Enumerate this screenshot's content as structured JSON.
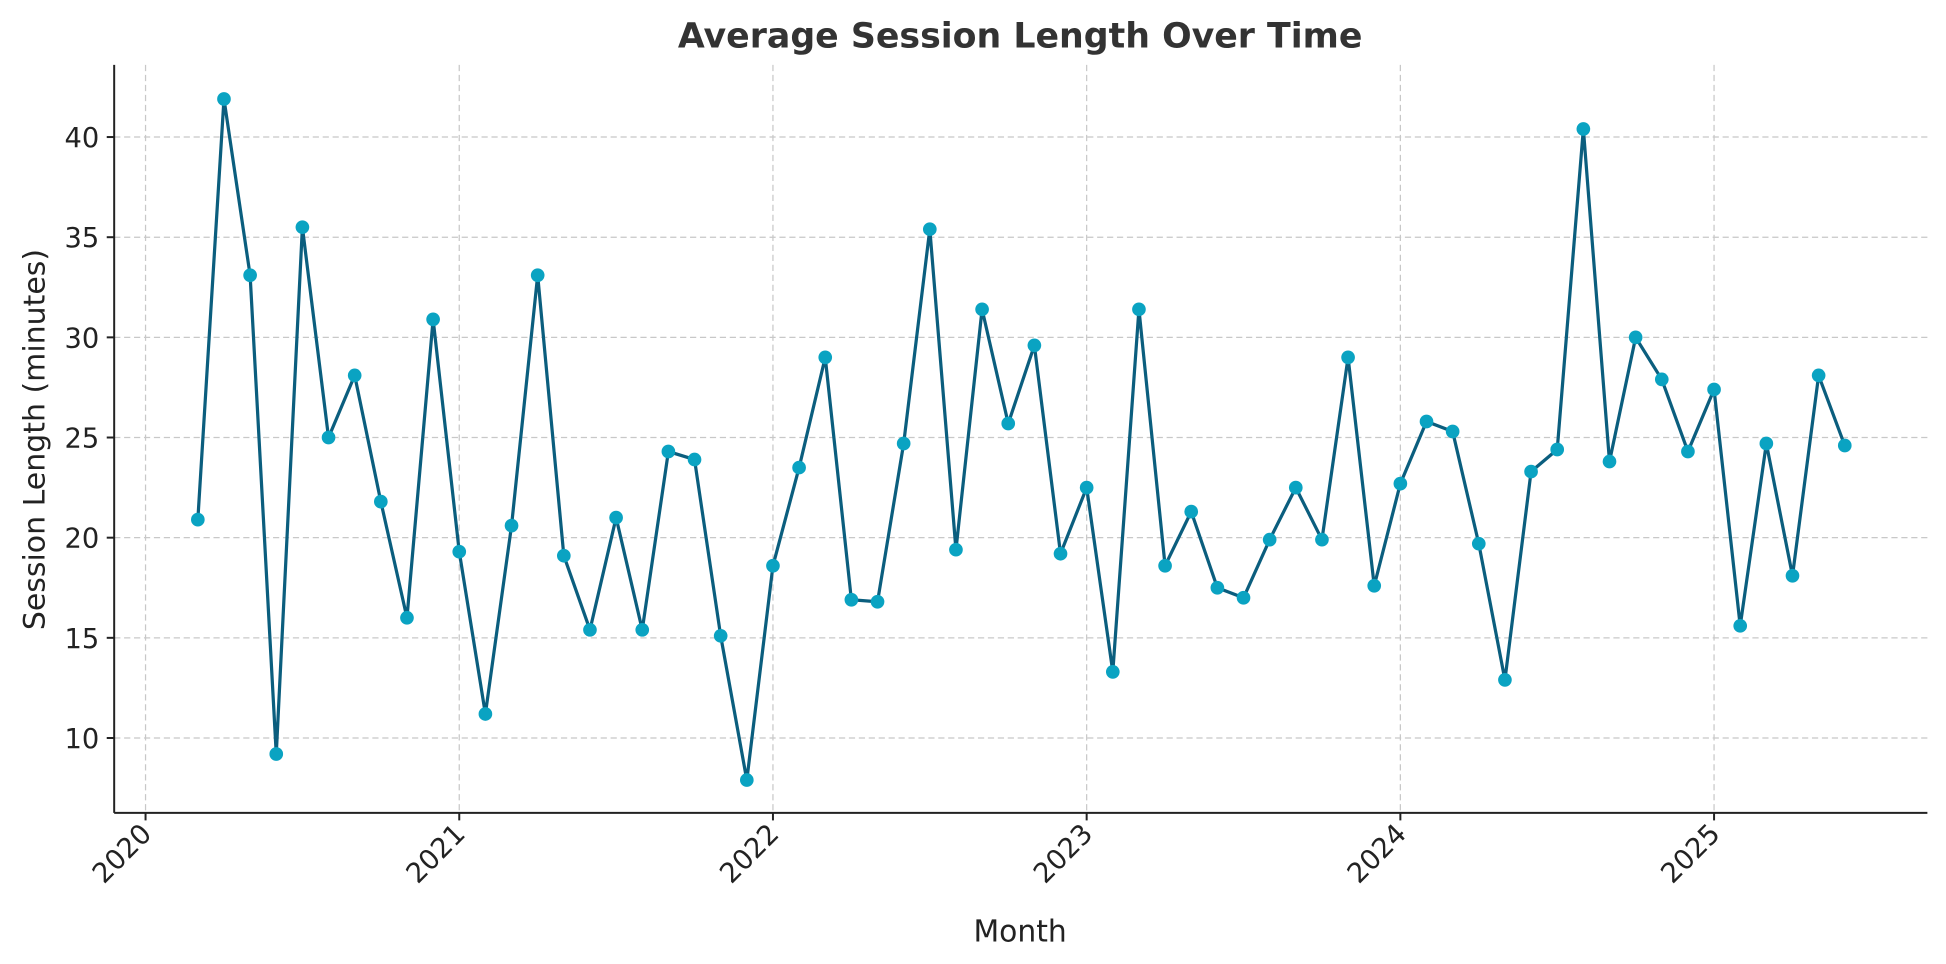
{
  "chart_data": {
    "type": "line",
    "title": "Average Session Length Over Time",
    "x_label": "Month",
    "y_label": "Session Length (minutes)",
    "x": [
      "2020-02",
      "2020-03",
      "2020-04",
      "2020-05",
      "2020-06",
      "2020-07",
      "2020-08",
      "2020-09",
      "2020-10",
      "2020-11",
      "2020-12",
      "2021-01",
      "2021-02",
      "2021-03",
      "2021-04",
      "2021-05",
      "2021-06",
      "2021-07",
      "2021-08",
      "2021-09",
      "2021-10",
      "2021-11",
      "2021-12",
      "2022-01",
      "2022-02",
      "2022-03",
      "2022-04",
      "2022-05",
      "2022-06",
      "2022-07",
      "2022-08",
      "2022-09",
      "2022-10",
      "2022-11",
      "2022-12",
      "2023-01",
      "2023-02",
      "2023-03",
      "2023-04",
      "2023-05",
      "2023-06",
      "2023-07",
      "2023-08",
      "2023-09",
      "2023-10",
      "2023-11",
      "2023-12",
      "2024-01",
      "2024-02",
      "2024-03",
      "2024-04",
      "2024-05",
      "2024-06",
      "2024-07",
      "2024-08",
      "2024-09",
      "2024-10",
      "2024-11",
      "2024-12",
      "2025-01",
      "2025-02",
      "2025-03",
      "2025-04",
      "2025-05"
    ],
    "values": [
      20.9,
      41.9,
      33.1,
      9.2,
      35.5,
      25.0,
      28.1,
      21.8,
      16.0,
      30.9,
      19.3,
      11.2,
      20.6,
      33.1,
      19.1,
      15.4,
      21.0,
      15.4,
      24.3,
      23.9,
      15.1,
      7.9,
      18.6,
      23.5,
      29.0,
      16.9,
      16.8,
      24.7,
      35.4,
      19.4,
      31.4,
      25.7,
      29.6,
      19.2,
      22.5,
      13.3,
      31.4,
      18.6,
      21.3,
      17.5,
      17.0,
      19.9,
      22.5,
      19.9,
      29.0,
      17.6,
      22.7,
      25.8,
      25.3,
      19.7,
      12.9,
      23.3,
      24.4,
      40.4,
      23.8,
      30.0,
      27.9,
      24.3,
      27.4,
      15.6,
      24.7,
      18.1,
      28.1,
      24.6
    ],
    "color": "#0b5e7e",
    "marker_color": "#0aa3c2",
    "xlim": [
      2019.9,
      2025.68
    ],
    "xticks": [
      2020,
      2021,
      2022,
      2023,
      2024,
      2025
    ],
    "ylim": [
      6.26,
      43.6
    ],
    "yticks": [
      10,
      15,
      20,
      25,
      30,
      35,
      40
    ],
    "grid": true
  }
}
